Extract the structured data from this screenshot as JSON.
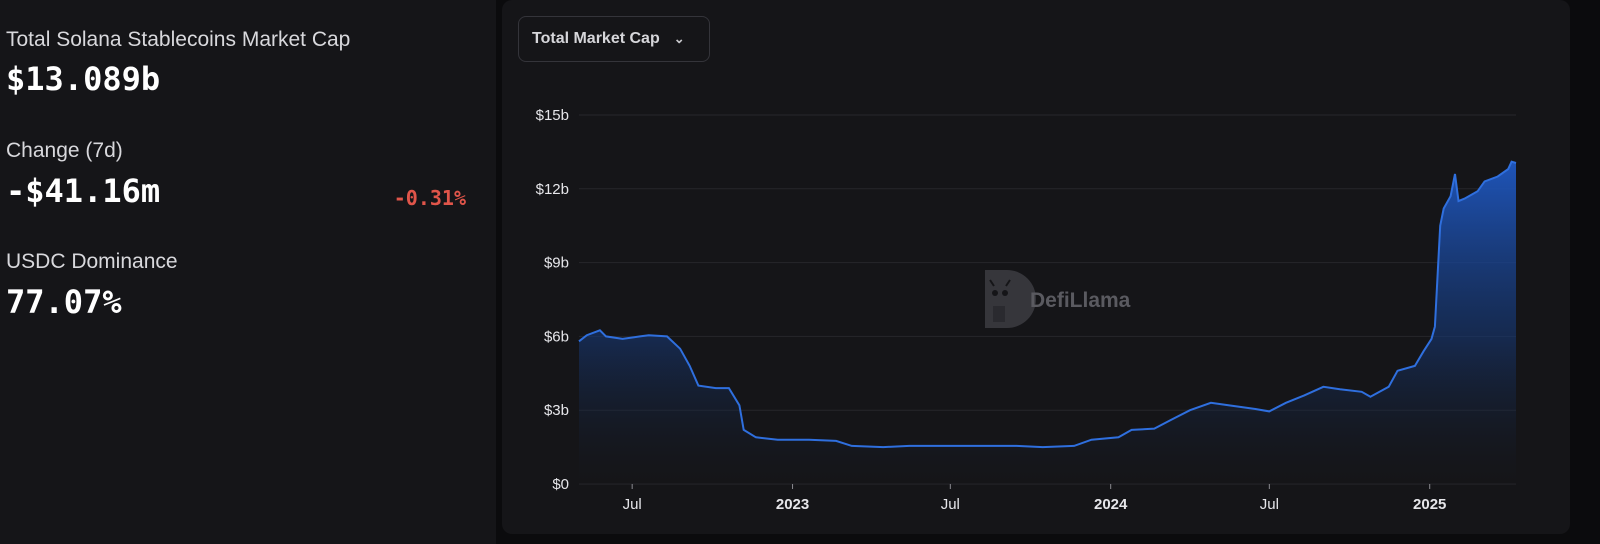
{
  "stats": {
    "market_cap_label": "Total Solana Stablecoins Market Cap",
    "market_cap_value": "$13.089b",
    "change_label": "Change (7d)",
    "change_value": "-$41.16m",
    "change_percent": "-0.31%",
    "change_percent_color": "#e0554a",
    "dominance_label": "USDC Dominance",
    "dominance_value": "77.07%"
  },
  "metric_select": {
    "label": "Total Market Cap"
  },
  "watermark": "DefiLlama",
  "colors": {
    "line": "#2f6fde",
    "fill_top": "#1f58c2",
    "background": "#151518",
    "grid": "#26262b"
  },
  "chart_data": {
    "type": "area",
    "title": "",
    "xlabel": "",
    "ylabel": "",
    "x_range": [
      "2022-05-01",
      "2025-04-10"
    ],
    "ylim": [
      0,
      15
    ],
    "y_unit": "$b",
    "y_ticks": [
      {
        "value": 0,
        "label": "$0"
      },
      {
        "value": 3,
        "label": "$3b"
      },
      {
        "value": 6,
        "label": "$6b"
      },
      {
        "value": 9,
        "label": "$9b"
      },
      {
        "value": 12,
        "label": "$12b"
      },
      {
        "value": 15,
        "label": "$15b"
      }
    ],
    "x_ticks": [
      {
        "date": "2022-07-01",
        "label": "Jul",
        "bold": false
      },
      {
        "date": "2023-01-01",
        "label": "2023",
        "bold": true
      },
      {
        "date": "2023-07-01",
        "label": "Jul",
        "bold": false
      },
      {
        "date": "2024-01-01",
        "label": "2024",
        "bold": true
      },
      {
        "date": "2024-07-01",
        "label": "Jul",
        "bold": false
      },
      {
        "date": "2025-01-01",
        "label": "2025",
        "bold": true
      }
    ],
    "grid": true,
    "series": [
      {
        "name": "",
        "points": [
          [
            "2022-05-01",
            5.8
          ],
          [
            "2022-05-10",
            6.05
          ],
          [
            "2022-05-25",
            6.25
          ],
          [
            "2022-06-01",
            6.0
          ],
          [
            "2022-06-20",
            5.9
          ],
          [
            "2022-07-10",
            6.0
          ],
          [
            "2022-07-20",
            6.05
          ],
          [
            "2022-08-10",
            6.0
          ],
          [
            "2022-08-25",
            5.5
          ],
          [
            "2022-09-05",
            4.8
          ],
          [
            "2022-09-15",
            4.0
          ],
          [
            "2022-10-05",
            3.9
          ],
          [
            "2022-10-20",
            3.9
          ],
          [
            "2022-11-01",
            3.2
          ],
          [
            "2022-11-06",
            2.2
          ],
          [
            "2022-11-20",
            1.9
          ],
          [
            "2022-12-15",
            1.8
          ],
          [
            "2023-01-20",
            1.8
          ],
          [
            "2023-02-20",
            1.75
          ],
          [
            "2023-03-10",
            1.55
          ],
          [
            "2023-04-15",
            1.5
          ],
          [
            "2023-05-15",
            1.55
          ],
          [
            "2023-07-15",
            1.55
          ],
          [
            "2023-09-15",
            1.55
          ],
          [
            "2023-10-15",
            1.5
          ],
          [
            "2023-11-20",
            1.55
          ],
          [
            "2023-12-10",
            1.8
          ],
          [
            "2024-01-10",
            1.9
          ],
          [
            "2024-01-25",
            2.2
          ],
          [
            "2024-02-20",
            2.25
          ],
          [
            "2024-03-10",
            2.6
          ],
          [
            "2024-04-01",
            3.0
          ],
          [
            "2024-04-25",
            3.3
          ],
          [
            "2024-05-15",
            3.2
          ],
          [
            "2024-06-15",
            3.05
          ],
          [
            "2024-07-01",
            2.95
          ],
          [
            "2024-07-20",
            3.3
          ],
          [
            "2024-08-10",
            3.6
          ],
          [
            "2024-09-01",
            3.95
          ],
          [
            "2024-09-20",
            3.85
          ],
          [
            "2024-10-15",
            3.75
          ],
          [
            "2024-10-25",
            3.55
          ],
          [
            "2024-11-15",
            3.95
          ],
          [
            "2024-11-25",
            4.6
          ],
          [
            "2024-12-15",
            4.8
          ],
          [
            "2024-12-25",
            5.4
          ],
          [
            "2025-01-03",
            5.9
          ],
          [
            "2025-01-07",
            6.4
          ],
          [
            "2025-01-10",
            8.5
          ],
          [
            "2025-01-13",
            10.5
          ],
          [
            "2025-01-17",
            11.2
          ],
          [
            "2025-01-25",
            11.7
          ],
          [
            "2025-01-30",
            12.6
          ],
          [
            "2025-02-03",
            11.5
          ],
          [
            "2025-02-10",
            11.6
          ],
          [
            "2025-02-25",
            11.9
          ],
          [
            "2025-03-05",
            12.3
          ],
          [
            "2025-03-20",
            12.5
          ],
          [
            "2025-04-01",
            12.8
          ],
          [
            "2025-04-05",
            13.1
          ],
          [
            "2025-04-10",
            13.05
          ]
        ]
      }
    ]
  }
}
